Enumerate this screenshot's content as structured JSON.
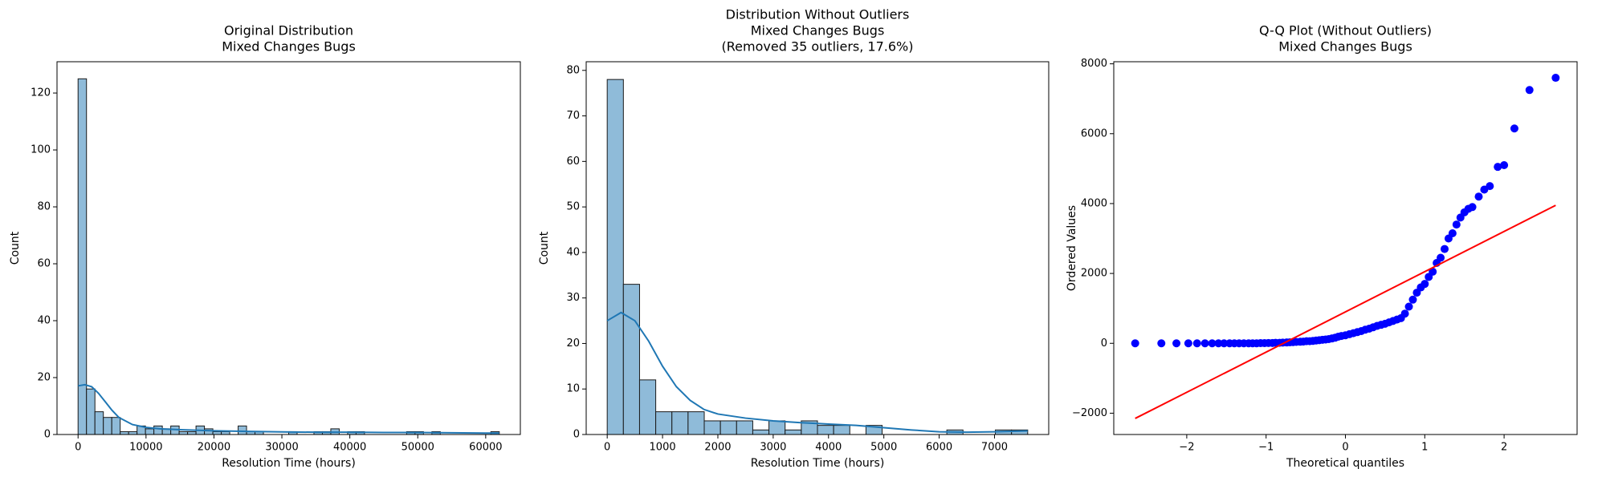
{
  "chart_data": [
    {
      "type": "histogram",
      "title": [
        "Original Distribution",
        "Mixed Changes Bugs"
      ],
      "xlabel": "Resolution Time (hours)",
      "ylabel": "Count",
      "bins": [
        0,
        1240,
        2480,
        3720,
        4960,
        6200,
        7440,
        8680,
        9920,
        11160,
        12400,
        13640,
        14880,
        16120,
        17360,
        18600,
        19840,
        21080,
        22320,
        23560,
        24800,
        26040,
        27280,
        28520,
        29760,
        31000,
        32240,
        33480,
        34720,
        35960,
        37200,
        38440,
        39680,
        40920,
        42160,
        43400,
        44640,
        45880,
        47120,
        48360,
        49600,
        50840,
        52080,
        53320,
        54560,
        55800,
        57040,
        58280,
        59520,
        60760,
        62000
      ],
      "counts": [
        125,
        16,
        8,
        6,
        6,
        1,
        1,
        3,
        2,
        3,
        2,
        3,
        1,
        1,
        3,
        2,
        1,
        1,
        0,
        3,
        1,
        1,
        0,
        0,
        0,
        1,
        0,
        0,
        1,
        1,
        2,
        0,
        1,
        1,
        0,
        0,
        0,
        0,
        0,
        1,
        1,
        0,
        1,
        0,
        0,
        0,
        0,
        0,
        0,
        1
      ],
      "color": "#8fbbd9",
      "edgecolor": "#1a1a1a",
      "kde": {
        "color": "#1f77b4",
        "x": [
          0,
          1000,
          2000,
          3000,
          4000,
          5000,
          6000,
          8000,
          10000,
          12000,
          15000,
          20000,
          25000,
          30000,
          35000,
          40000,
          45000,
          50000,
          55000,
          60000,
          62000
        ],
        "y": [
          17.1,
          17.5,
          16.8,
          14.5,
          11.5,
          8.5,
          6,
          3.5,
          2.5,
          2,
          1.7,
          1.3,
          1.1,
          0.9,
          0.8,
          0.8,
          0.7,
          0.7,
          0.6,
          0.5,
          0.5
        ]
      },
      "xlim": [
        -3100,
        65100
      ],
      "xticks": [
        0,
        10000,
        20000,
        30000,
        40000,
        50000,
        60000
      ],
      "ylim": [
        0,
        131
      ],
      "yticks": [
        0,
        20,
        40,
        60,
        80,
        100,
        120
      ]
    },
    {
      "type": "histogram",
      "title": [
        "Distribution Without Outliers",
        "Mixed Changes Bugs",
        "(Removed 35 outliers, 17.6%)"
      ],
      "xlabel": "Resolution Time (hours)",
      "ylabel": "Count",
      "bins": [
        0,
        292.3,
        584.6,
        876.9,
        1169.2,
        1461.5,
        1753.8,
        2046.2,
        2338.5,
        2630.8,
        2923.1,
        3215.4,
        3507.7,
        3800,
        4092.3,
        4384.6,
        4676.9,
        4969.2,
        5261.5,
        5553.8,
        5846.2,
        6138.5,
        6430.8,
        6723.1,
        7015.4,
        7307.7,
        7600
      ],
      "counts": [
        78,
        33,
        12,
        5,
        5,
        5,
        3,
        3,
        3,
        1,
        3,
        1,
        3,
        2,
        2,
        0,
        2,
        0,
        0,
        0,
        0,
        1,
        0,
        0,
        1,
        1
      ],
      "color": "#8fbbd9",
      "edgecolor": "#1a1a1a",
      "kde": {
        "color": "#1f77b4",
        "x": [
          0,
          250,
          500,
          750,
          1000,
          1250,
          1500,
          1750,
          2000,
          2500,
          3000,
          3500,
          4000,
          4500,
          5000,
          5500,
          6000,
          6500,
          7000,
          7600
        ],
        "y": [
          25,
          26.8,
          25,
          20.5,
          15,
          10.5,
          7.5,
          5.5,
          4.5,
          3.6,
          3,
          2.6,
          2.3,
          2,
          1.5,
          1,
          0.6,
          0.5,
          0.6,
          0.8
        ]
      },
      "xlim": [
        -380,
        7980
      ],
      "xticks": [
        0,
        1000,
        2000,
        3000,
        4000,
        5000,
        6000,
        7000
      ],
      "ylim": [
        0,
        81.9
      ],
      "yticks": [
        0,
        10,
        20,
        30,
        40,
        50,
        60,
        70,
        80
      ]
    },
    {
      "type": "scatter",
      "title": [
        "Q-Q Plot (Without Outliers)",
        "Mixed Changes Bugs"
      ],
      "xlabel": "Theoretical quantiles",
      "ylabel": "Ordered Values",
      "color": "#0000ff",
      "x": [
        -2.65,
        -2.32,
        -2.13,
        -1.98,
        -1.87,
        -1.77,
        -1.68,
        -1.6,
        -1.53,
        -1.46,
        -1.4,
        -1.34,
        -1.28,
        -1.22,
        -1.17,
        -1.12,
        -1.07,
        -1.02,
        -0.97,
        -0.92,
        -0.88,
        -0.83,
        -0.79,
        -0.74,
        -0.7,
        -0.66,
        -0.62,
        -0.57,
        -0.53,
        -0.49,
        -0.45,
        -0.41,
        -0.37,
        -0.33,
        -0.29,
        -0.25,
        -0.21,
        -0.17,
        -0.13,
        -0.09,
        -0.05,
        0,
        0.05,
        0.1,
        0.15,
        0.2,
        0.25,
        0.3,
        0.35,
        0.4,
        0.45,
        0.5,
        0.55,
        0.6,
        0.65,
        0.7,
        0.75,
        0.8,
        0.85,
        0.9,
        0.95,
        1.0,
        1.05,
        1.1,
        1.15,
        1.2,
        1.25,
        1.3,
        1.35,
        1.4,
        1.45,
        1.5,
        1.55,
        1.6,
        1.68,
        1.75,
        1.82,
        1.92,
        2.0,
        2.13,
        2.32,
        2.65
      ],
      "y": [
        0,
        0,
        0,
        0,
        0,
        0,
        0,
        0,
        0,
        0,
        0,
        0,
        0,
        0,
        0,
        0,
        5,
        5,
        10,
        10,
        15,
        15,
        20,
        25,
        30,
        35,
        40,
        45,
        50,
        60,
        60,
        70,
        80,
        90,
        100,
        110,
        120,
        140,
        160,
        190,
        210,
        230,
        260,
        290,
        320,
        350,
        390,
        420,
        460,
        500,
        530,
        560,
        600,
        640,
        680,
        720,
        850,
        1050,
        1250,
        1450,
        1600,
        1700,
        1900,
        2050,
        2300,
        2450,
        2700,
        3000,
        3150,
        3400,
        3600,
        3750,
        3850,
        3900,
        4200,
        4400,
        4500,
        5050,
        5100,
        6150,
        7250,
        7600
      ],
      "fit_line": {
        "color": "#ff0000",
        "x": [
          -2.65,
          2.65
        ],
        "y": [
          -2150,
          3950
        ]
      },
      "xlim": [
        -2.92,
        2.92
      ],
      "xticks": [
        {
          "value": -2,
          "label": "−2"
        },
        {
          "value": -1,
          "label": "−1"
        },
        0,
        1,
        2
      ],
      "ylim": [
        -2610,
        8060
      ],
      "yticks": [
        {
          "value": -2000,
          "label": "−2000"
        },
        0,
        2000,
        4000,
        6000,
        8000
      ]
    }
  ]
}
